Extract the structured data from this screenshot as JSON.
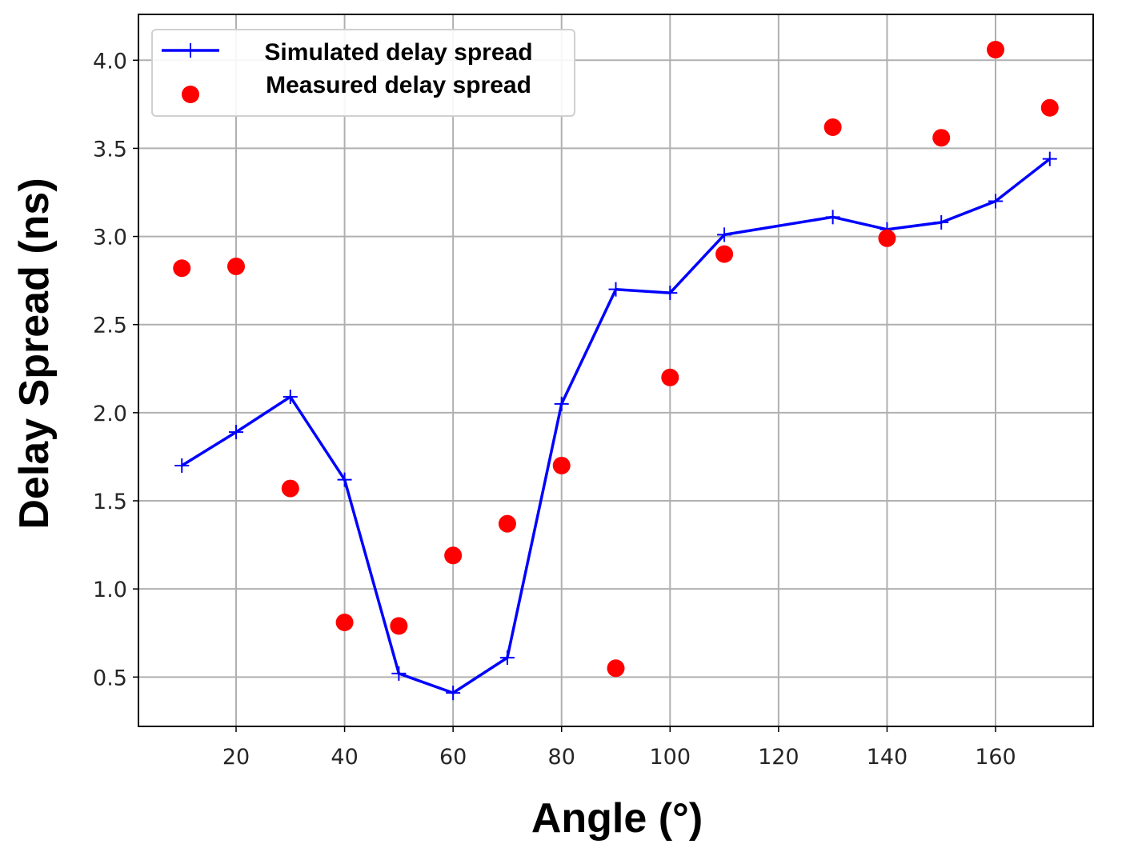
{
  "chart_data": {
    "type": "line",
    "xlabel": "Angle (°)",
    "ylabel": "Delay Spread (ns)",
    "xlim": [
      2,
      178
    ],
    "ylim": [
      0.22,
      4.26
    ],
    "xticks": [
      20,
      40,
      60,
      80,
      100,
      120,
      140,
      160
    ],
    "xtick_labels": [
      "20",
      "40",
      "60",
      "80",
      "100",
      "120",
      "140",
      "160"
    ],
    "yticks": [
      0.5,
      1.0,
      1.5,
      2.0,
      2.5,
      3.0,
      3.5,
      4.0
    ],
    "ytick_labels": [
      "0.5",
      "1.0",
      "1.5",
      "2.0",
      "2.5",
      "3.0",
      "3.5",
      "4.0"
    ],
    "grid": true,
    "legend_position": "top-left",
    "series": [
      {
        "name": "Simulated delay spread",
        "kind": "line",
        "marker": "plus",
        "color": "#0000ff",
        "x": [
          10,
          20,
          30,
          40,
          50,
          60,
          70,
          80,
          90,
          100,
          110,
          130,
          140,
          150,
          160,
          170
        ],
        "y": [
          1.7,
          1.89,
          2.09,
          1.62,
          0.52,
          0.41,
          0.61,
          2.05,
          2.7,
          2.68,
          3.01,
          3.11,
          3.04,
          3.08,
          3.2,
          3.44
        ]
      },
      {
        "name": "Measured delay spread",
        "kind": "scatter",
        "marker": "circle",
        "color": "#ff0000",
        "x": [
          10,
          20,
          30,
          40,
          50,
          60,
          70,
          80,
          90,
          100,
          110,
          130,
          140,
          150,
          160,
          170
        ],
        "y": [
          2.82,
          2.83,
          1.57,
          0.81,
          0.79,
          1.19,
          1.37,
          1.7,
          0.55,
          2.2,
          2.9,
          3.62,
          2.99,
          3.56,
          4.06,
          3.73
        ]
      }
    ]
  }
}
